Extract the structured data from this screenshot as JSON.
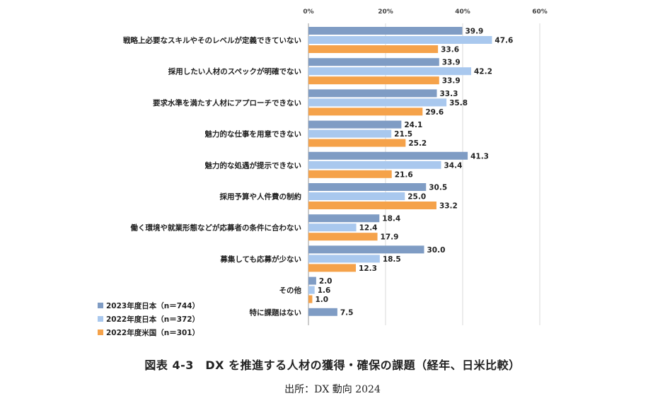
{
  "chart_data": {
    "type": "bar",
    "orientation": "horizontal",
    "categories": [
      "戦略上必要なスキルやそのレベルが定義できていない",
      "採用したい人材のスペックが明確でない",
      "要求水準を満たす人材にアプローチできない",
      "魅力的な仕事を用意できない",
      "魅力的な処遇が提示できない",
      "採用予算や人件費の制約",
      "働く環境や就業形態などが応募者の条件に合わない",
      "募集しても応募が少ない",
      "その他",
      "特に課題はない"
    ],
    "series": [
      {
        "name": "2023年度日本（n＝744）",
        "color": "#7f9cc4",
        "values": [
          39.9,
          33.9,
          33.3,
          24.1,
          41.3,
          30.5,
          18.4,
          30.0,
          2.0,
          7.5
        ]
      },
      {
        "name": "2022年度日本（n＝372）",
        "color": "#a9c8ee",
        "values": [
          47.6,
          42.2,
          35.8,
          21.5,
          34.4,
          25.0,
          12.4,
          18.5,
          1.6,
          null
        ]
      },
      {
        "name": "2022年度米国（n＝301）",
        "color": "#f5a24a",
        "values": [
          33.6,
          33.9,
          29.6,
          25.2,
          21.6,
          33.2,
          17.9,
          12.3,
          1.0,
          null
        ]
      }
    ],
    "xlim": [
      0,
      60
    ],
    "x_ticks": [
      "0%",
      "20%",
      "40%",
      "60%"
    ],
    "grid": true,
    "legend": "bottom-left"
  },
  "caption": "図表 4-3　DX を推進する人材の獲得・確保の課題（経年、日米比較）",
  "source": "出所：DX 動向 2024"
}
